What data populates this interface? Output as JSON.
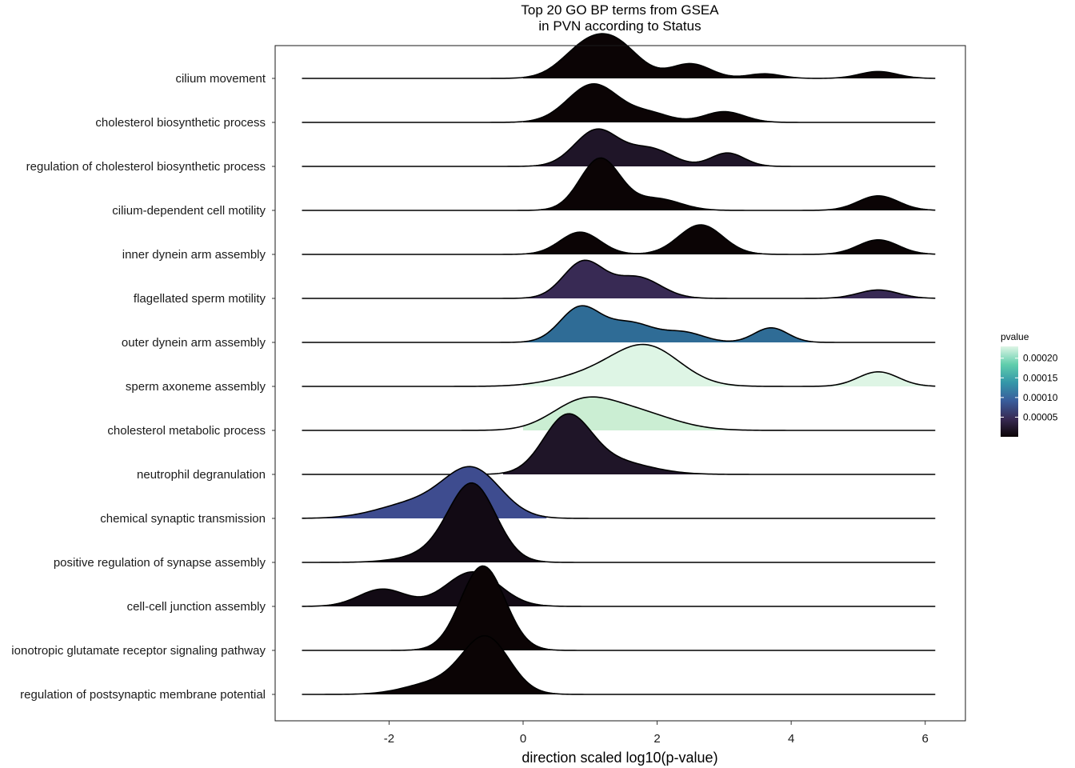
{
  "chart_data": {
    "type": "ridgeline",
    "title_lines": [
      "Top 20 GO BP terms from GSEA",
      "in PVN according to Status"
    ],
    "xlabel": "direction scaled log10(p-value)",
    "ylabel": "",
    "xlim": [
      -3.7,
      6.6
    ],
    "xticks": [
      -2,
      0,
      2,
      4,
      6
    ],
    "legend": {
      "title": "pvalue",
      "position": "right",
      "range": [
        0,
        0.00023
      ],
      "ticks": [
        {
          "value": 5e-05,
          "label": "0.00005"
        },
        {
          "value": 0.0001,
          "label": "0.00010"
        },
        {
          "value": 0.00015,
          "label": "0.00015"
        },
        {
          "value": 0.0002,
          "label": "0.00020"
        }
      ],
      "gradient": [
        "#0b0405",
        "#382a54",
        "#395d9c",
        "#3497a9",
        "#60ceac",
        "#def5e5"
      ]
    },
    "series": [
      {
        "name": "cilium movement",
        "pvalue": 2e-06,
        "fill": "#0b0405",
        "extent": [
          -3.3,
          6.15
        ],
        "fill_range": [
          0.0,
          6.15
        ],
        "peaks": [
          [
            0.9,
            0.7,
            0.35
          ],
          [
            1.4,
            0.8,
            0.35
          ],
          [
            2.5,
            0.38,
            0.3
          ],
          [
            3.6,
            0.12,
            0.25
          ],
          [
            5.3,
            0.18,
            0.28
          ]
        ]
      },
      {
        "name": "cholesterol biosynthetic process",
        "pvalue": 2e-06,
        "fill": "#0b0405",
        "extent": [
          -3.3,
          6.15
        ],
        "fill_range": [
          0.0,
          6.15
        ],
        "peaks": [
          [
            1.05,
            1.0,
            0.38
          ],
          [
            1.9,
            0.22,
            0.3
          ],
          [
            3.0,
            0.28,
            0.3
          ]
        ]
      },
      {
        "name": "regulation of cholesterol biosynthetic process",
        "pvalue": 1.5e-05,
        "fill": "#1f1528",
        "extent": [
          -3.3,
          6.15
        ],
        "fill_range": [
          0.0,
          6.15
        ],
        "peaks": [
          [
            1.1,
            0.95,
            0.33
          ],
          [
            1.9,
            0.45,
            0.33
          ],
          [
            3.05,
            0.35,
            0.25
          ]
        ]
      },
      {
        "name": "cilium-dependent cell motility",
        "pvalue": 3e-06,
        "fill": "#0b0405",
        "extent": [
          -3.3,
          6.15
        ],
        "fill_range": [
          0.0,
          6.15
        ],
        "peaks": [
          [
            1.15,
            1.35,
            0.3
          ],
          [
            2.0,
            0.3,
            0.35
          ],
          [
            5.3,
            0.38,
            0.3
          ]
        ]
      },
      {
        "name": "inner dynein arm assembly",
        "pvalue": 4e-06,
        "fill": "#0b0405",
        "extent": [
          -3.3,
          6.15
        ],
        "fill_range": [
          0.0,
          6.15
        ],
        "peaks": [
          [
            0.85,
            0.58,
            0.3
          ],
          [
            2.65,
            0.77,
            0.33
          ],
          [
            5.3,
            0.38,
            0.3
          ]
        ]
      },
      {
        "name": "flagellated sperm motility",
        "pvalue": 4.8e-05,
        "fill": "#382a54",
        "extent": [
          -3.3,
          6.15
        ],
        "fill_range": [
          0.0,
          6.15
        ],
        "peaks": [
          [
            0.9,
            0.95,
            0.3
          ],
          [
            1.7,
            0.55,
            0.35
          ],
          [
            5.3,
            0.22,
            0.3
          ]
        ]
      },
      {
        "name": "outer dynein arm assembly",
        "pvalue": 0.000102,
        "fill": "#2f6c96",
        "extent": [
          -3.3,
          6.15
        ],
        "fill_range": [
          0.0,
          6.15
        ],
        "peaks": [
          [
            0.85,
            0.9,
            0.3
          ],
          [
            1.6,
            0.5,
            0.35
          ],
          [
            2.4,
            0.25,
            0.3
          ],
          [
            3.7,
            0.38,
            0.25
          ]
        ]
      },
      {
        "name": "sperm axoneme assembly",
        "pvalue": 0.00022,
        "fill": "#def5e5",
        "extent": [
          -3.3,
          6.15
        ],
        "fill_range": [
          0.0,
          6.15
        ],
        "peaks": [
          [
            1.0,
            0.28,
            0.55
          ],
          [
            1.85,
            1.0,
            0.5
          ],
          [
            5.3,
            0.38,
            0.3
          ]
        ]
      },
      {
        "name": "cholesterol metabolic process",
        "pvalue": 0.000212,
        "fill": "#cbeed3",
        "extent": [
          -3.3,
          6.15
        ],
        "fill_range": [
          0.0,
          6.15
        ],
        "peaks": [
          [
            0.85,
            0.6,
            0.45
          ],
          [
            1.6,
            0.5,
            0.6
          ]
        ]
      },
      {
        "name": "neutrophil degranulation",
        "pvalue": 1.2e-05,
        "fill": "#1f1528",
        "extent": [
          -3.3,
          6.15
        ],
        "fill_range": [
          -0.3,
          6.15
        ],
        "peaks": [
          [
            0.65,
            1.4,
            0.35
          ],
          [
            1.3,
            0.35,
            0.55
          ]
        ]
      },
      {
        "name": "chemical synaptic transmission",
        "pvalue": 7.8e-05,
        "fill": "#3e4c8f",
        "extent": [
          -3.3,
          6.15
        ],
        "fill_range": [
          -3.3,
          0.35
        ],
        "peaks": [
          [
            -0.75,
            1.22,
            0.42
          ],
          [
            -1.6,
            0.4,
            0.55
          ]
        ]
      },
      {
        "name": "positive regulation of synapse assembly",
        "pvalue": 4e-06,
        "fill": "#120a14",
        "extent": [
          -3.3,
          6.15
        ],
        "fill_range": [
          -3.3,
          6.15
        ],
        "peaks": [
          [
            -0.75,
            1.9,
            0.35
          ],
          [
            -1.2,
            0.25,
            0.5
          ]
        ]
      },
      {
        "name": "cell-cell junction assembly",
        "pvalue": 5e-06,
        "fill": "#120a14",
        "extent": [
          -3.3,
          6.15
        ],
        "fill_range": [
          -3.3,
          6.15
        ],
        "peaks": [
          [
            -2.1,
            0.45,
            0.35
          ],
          [
            -0.75,
            0.9,
            0.4
          ]
        ]
      },
      {
        "name": "ionotropic glutamate receptor signaling pathway",
        "pvalue": 2e-06,
        "fill": "#0b0405",
        "extent": [
          -3.3,
          6.15
        ],
        "fill_range": [
          -3.3,
          6.15
        ],
        "peaks": [
          [
            -0.6,
            2.2,
            0.33
          ]
        ]
      },
      {
        "name": "regulation of postsynaptic membrane potential",
        "pvalue": 1e-06,
        "fill": "#0b0405",
        "extent": [
          -3.3,
          6.15
        ],
        "fill_range": [
          -3.3,
          6.15
        ],
        "peaks": [
          [
            -0.55,
            1.45,
            0.35
          ],
          [
            -1.3,
            0.3,
            0.45
          ]
        ]
      }
    ]
  }
}
